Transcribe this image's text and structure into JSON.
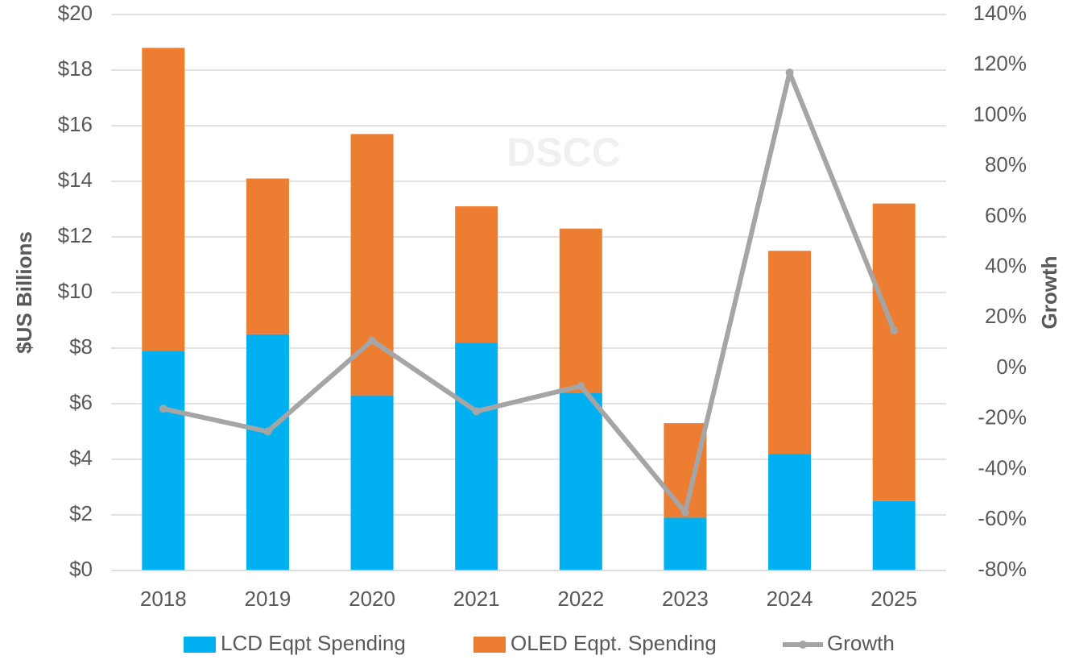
{
  "chart_data": {
    "type": "bar",
    "stacked": true,
    "watermark": "DSCC",
    "ylabel": "$US Billions",
    "y2label": "Growth",
    "categories": [
      "2018",
      "2019",
      "2020",
      "2021",
      "2022",
      "2023",
      "2024",
      "2025"
    ],
    "series": [
      {
        "name": "LCD Eqpt Spending",
        "color": "#00b0f0",
        "values": [
          7.9,
          8.5,
          6.3,
          8.2,
          6.4,
          1.9,
          4.2,
          2.5
        ]
      },
      {
        "name": "OLED Eqpt. Spending",
        "color": "#ed7d31",
        "values": [
          10.9,
          5.6,
          9.4,
          4.9,
          5.9,
          3.4,
          7.3,
          10.7
        ]
      },
      {
        "name": "Growth",
        "color": "#a5a5a5",
        "type": "line",
        "axis": "y2",
        "values": [
          -16,
          -25,
          11,
          -17,
          -7,
          -57,
          117,
          15
        ]
      }
    ],
    "ylim": [
      0,
      20
    ],
    "yticks": [
      {
        "value": 0,
        "label": "$0"
      },
      {
        "value": 2,
        "label": "$2"
      },
      {
        "value": 4,
        "label": "$4"
      },
      {
        "value": 6,
        "label": "$6"
      },
      {
        "value": 8,
        "label": "$8"
      },
      {
        "value": 10,
        "label": "$10"
      },
      {
        "value": 12,
        "label": "$12"
      },
      {
        "value": 14,
        "label": "$14"
      },
      {
        "value": 16,
        "label": "$16"
      },
      {
        "value": 18,
        "label": "$18"
      },
      {
        "value": 20,
        "label": "$20"
      }
    ],
    "y2lim": [
      -80,
      140
    ],
    "y2ticks": [
      {
        "value": -80,
        "label": "-80%"
      },
      {
        "value": -60,
        "label": "-60%"
      },
      {
        "value": -40,
        "label": "-40%"
      },
      {
        "value": -20,
        "label": "-20%"
      },
      {
        "value": 0,
        "label": "0%"
      },
      {
        "value": 20,
        "label": "20%"
      },
      {
        "value": 40,
        "label": "40%"
      },
      {
        "value": 60,
        "label": "60%"
      },
      {
        "value": 80,
        "label": "80%"
      },
      {
        "value": 100,
        "label": "100%"
      },
      {
        "value": 120,
        "label": "120%"
      },
      {
        "value": 140,
        "label": "140%"
      }
    ],
    "grid": true,
    "legend": "bottom"
  }
}
